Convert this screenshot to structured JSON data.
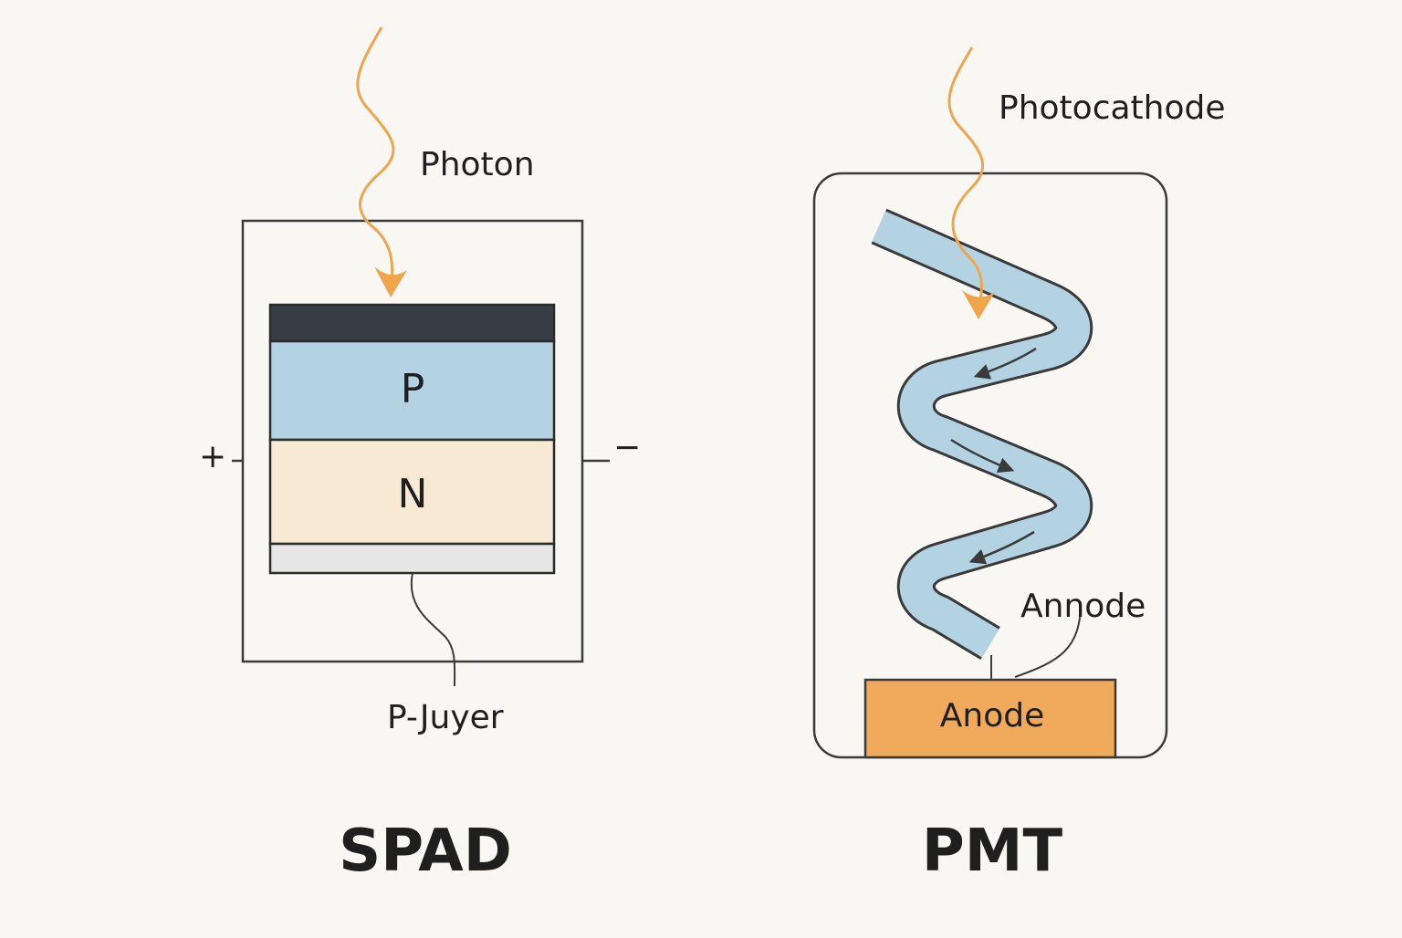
{
  "colors": {
    "background": "#f8f7f4",
    "photon": "#f0a54a",
    "p_layer": "#b3d3e3",
    "n_layer": "#f8e9d4",
    "top_contact": "#363e44",
    "bottom_contact": "#e6e6e6",
    "dynode_tube": "#b3d3e3",
    "anode": "#f1a95b",
    "outline": "#3a3a3a"
  },
  "spad": {
    "photon_label": "Photon",
    "p_label": "P",
    "n_label": "N",
    "plus_label": "+",
    "minus_label": "−",
    "layer_label": "P-Juyer",
    "title": "SPAD"
  },
  "pmt": {
    "photocathode_label": "Photocathode",
    "annode_label": "Annode",
    "anode_label": "Anode",
    "title": "PMT"
  }
}
